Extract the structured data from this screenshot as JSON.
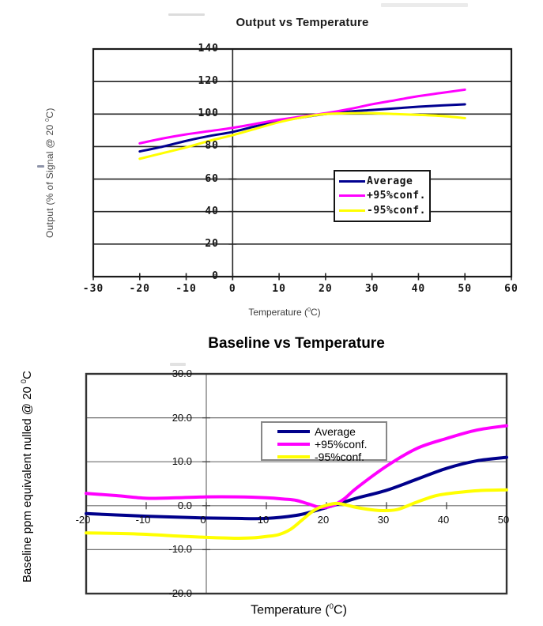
{
  "page": {
    "background": "#ffffff"
  },
  "chart_data": [
    {
      "type": "line",
      "title": "Output vs Temperature",
      "xlabel": {
        "pre": "Temperature (",
        "sup": "0",
        "post": "C)"
      },
      "ylabel": {
        "pre": "Output (% of Signal @ 20 ",
        "sup": "0",
        "post": "C)"
      },
      "xlim": [
        -30,
        60
      ],
      "ylim": [
        0,
        140
      ],
      "grid": "horizontal",
      "x_ticks": [
        -30,
        -20,
        -10,
        0,
        10,
        20,
        30,
        40,
        50,
        60
      ],
      "x_tick_labels": [
        "-30",
        "-20",
        "-10",
        "0",
        "10",
        "20",
        "30",
        "40",
        "50",
        "60"
      ],
      "y_ticks": [
        0,
        20,
        40,
        60,
        80,
        100,
        120,
        140
      ],
      "y_tick_labels": [
        "0",
        "20",
        "40",
        "60",
        "80",
        "100",
        "120",
        "140"
      ],
      "legend_position": "inside-lower-right",
      "series": [
        {
          "name": "Average",
          "color": "#000090",
          "points": [
            [
              -20,
              77
            ],
            [
              -15,
              80
            ],
            [
              -10,
              83.5
            ],
            [
              -5,
              86.5
            ],
            [
              0,
              89
            ],
            [
              5,
              92.5
            ],
            [
              10,
              95.5
            ],
            [
              15,
              98
            ],
            [
              20,
              100
            ],
            [
              25,
              101.5
            ],
            [
              30,
              102.5
            ],
            [
              35,
              103.5
            ],
            [
              40,
              104.5
            ],
            [
              45,
              105.3
            ],
            [
              50,
              106
            ]
          ]
        },
        {
          "name": "+95%conf.",
          "color": "#FF00FF",
          "points": [
            [
              -20,
              82
            ],
            [
              -15,
              85
            ],
            [
              -10,
              87.5
            ],
            [
              -5,
              89.5
            ],
            [
              0,
              91.5
            ],
            [
              5,
              94
            ],
            [
              10,
              96.5
            ],
            [
              15,
              98.5
            ],
            [
              20,
              100.5
            ],
            [
              25,
              103
            ],
            [
              30,
              106
            ],
            [
              35,
              108.5
            ],
            [
              40,
              111
            ],
            [
              45,
              113
            ],
            [
              50,
              115
            ]
          ]
        },
        {
          "name": "-95%conf.",
          "color": "#FFFF00",
          "points": [
            [
              -20,
              72.5
            ],
            [
              -15,
              76
            ],
            [
              -10,
              79.5
            ],
            [
              -5,
              83.5
            ],
            [
              0,
              87
            ],
            [
              5,
              91
            ],
            [
              10,
              95
            ],
            [
              15,
              98
            ],
            [
              20,
              100
            ],
            [
              25,
              100.5
            ],
            [
              30,
              100.5
            ],
            [
              35,
              100
            ],
            [
              40,
              99.5
            ],
            [
              45,
              98.8
            ],
            [
              50,
              97.5
            ]
          ]
        }
      ]
    },
    {
      "type": "line",
      "title": "Baseline vs Temperature",
      "xlabel": {
        "pre": "Temperature (",
        "sup": "0",
        "post": "C)"
      },
      "ylabel": {
        "pre": "Baseline ppm equivalent nulled @ 20 ",
        "sup": "0",
        "post": "C"
      },
      "xlim": [
        -20,
        50
      ],
      "ylim": [
        -20,
        30
      ],
      "grid": "horizontal",
      "x_ticks": [
        -20,
        -10,
        0,
        10,
        20,
        30,
        40,
        50
      ],
      "x_tick_labels": [
        "-20",
        "-10",
        "0",
        "10",
        "20",
        "30",
        "40",
        "50"
      ],
      "y_ticks": [
        -20,
        -10,
        0,
        10,
        20,
        30
      ],
      "y_tick_labels": [
        "-20.0",
        "-10.0",
        "0.0",
        "10.0",
        "20.0",
        "30.0"
      ],
      "legend_position": "inside-upper-middle",
      "series": [
        {
          "name": "Average",
          "color": "#00008B",
          "points": [
            [
              -20,
              -1.8
            ],
            [
              -15,
              -2.1
            ],
            [
              -10,
              -2.4
            ],
            [
              -5,
              -2.6
            ],
            [
              0,
              -2.8
            ],
            [
              5,
              -2.9
            ],
            [
              10,
              -2.9
            ],
            [
              15,
              -2.2
            ],
            [
              18,
              -1.2
            ],
            [
              20,
              -0.4
            ],
            [
              22,
              0.4
            ],
            [
              25,
              1.7
            ],
            [
              30,
              3.5
            ],
            [
              35,
              6
            ],
            [
              40,
              8.5
            ],
            [
              45,
              10.2
            ],
            [
              50,
              11
            ]
          ]
        },
        {
          "name": "+95%conf.",
          "color": "#FF00FF",
          "points": [
            [
              -20,
              2.8
            ],
            [
              -15,
              2.3
            ],
            [
              -10,
              1.7
            ],
            [
              -5,
              1.8
            ],
            [
              0,
              2
            ],
            [
              5,
              2
            ],
            [
              10,
              1.8
            ],
            [
              13,
              1.5
            ],
            [
              15,
              1.2
            ],
            [
              17,
              0.4
            ],
            [
              19,
              -0.4
            ],
            [
              21,
              0
            ],
            [
              23,
              1.6
            ],
            [
              25,
              4
            ],
            [
              30,
              9
            ],
            [
              35,
              13
            ],
            [
              40,
              15.3
            ],
            [
              45,
              17.2
            ],
            [
              50,
              18.2
            ]
          ]
        },
        {
          "name": "-95%conf.",
          "color": "#FFFF00",
          "points": [
            [
              -20,
              -6.2
            ],
            [
              -15,
              -6.3
            ],
            [
              -10,
              -6.5
            ],
            [
              -5,
              -6.9
            ],
            [
              0,
              -7.2
            ],
            [
              5,
              -7.4
            ],
            [
              8,
              -7.3
            ],
            [
              10,
              -7
            ],
            [
              12,
              -6.6
            ],
            [
              14,
              -5.4
            ],
            [
              16,
              -3.2
            ],
            [
              18,
              -1
            ],
            [
              20,
              0.1
            ],
            [
              22,
              0.5
            ],
            [
              25,
              -0.4
            ],
            [
              28,
              -1
            ],
            [
              30,
              -1.1
            ],
            [
              32,
              -0.8
            ],
            [
              35,
              0.8
            ],
            [
              38,
              2.2
            ],
            [
              40,
              2.7
            ],
            [
              45,
              3.4
            ],
            [
              50,
              3.6
            ]
          ]
        }
      ]
    }
  ]
}
